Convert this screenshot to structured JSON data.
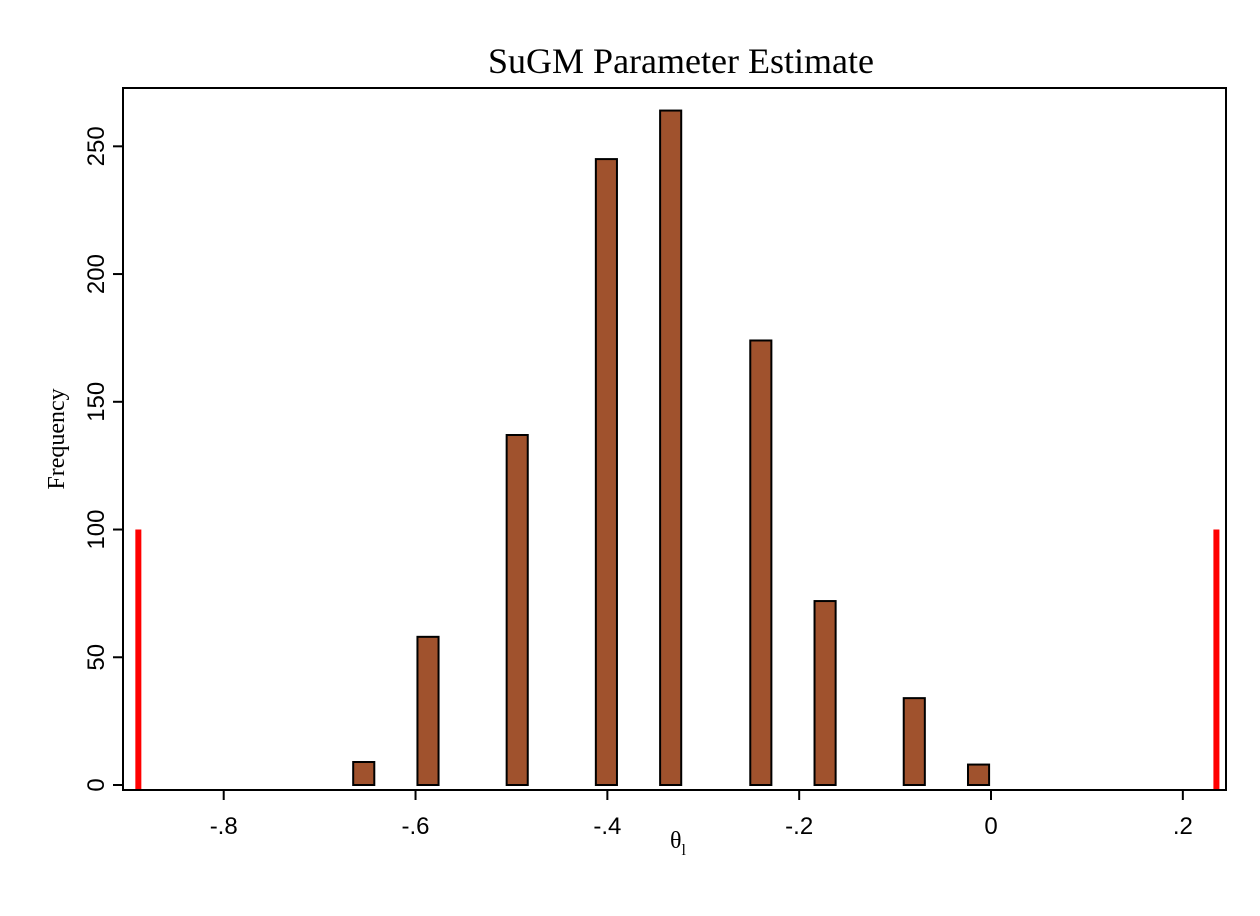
{
  "chart_data": {
    "type": "bar",
    "title": "SuGM Parameter Estimate",
    "xlabel": "θ",
    "xlabel_subscript": "l",
    "ylabel": "Frequency",
    "xlim": [
      -0.905,
      0.245
    ],
    "ylim": [
      0,
      265
    ],
    "x_ticks": [
      {
        "value": -0.8,
        "label": "-.8"
      },
      {
        "value": -0.6,
        "label": "-.6"
      },
      {
        "value": -0.4,
        "label": "-.4"
      },
      {
        "value": -0.2,
        "label": "-.2"
      },
      {
        "value": 0,
        "label": "0"
      },
      {
        "value": 0.2,
        "label": ".2"
      }
    ],
    "y_ticks": [
      {
        "value": 0,
        "label": "0"
      },
      {
        "value": 50,
        "label": "50"
      },
      {
        "value": 100,
        "label": "100"
      },
      {
        "value": 150,
        "label": "150"
      },
      {
        "value": 200,
        "label": "200"
      },
      {
        "value": 250,
        "label": "250"
      }
    ],
    "bar_width": 0.022,
    "bars": [
      {
        "x": -0.654,
        "value": 9
      },
      {
        "x": -0.587,
        "value": 58
      },
      {
        "x": -0.494,
        "value": 137
      },
      {
        "x": -0.401,
        "value": 245
      },
      {
        "x": -0.334,
        "value": 264
      },
      {
        "x": -0.24,
        "value": 174
      },
      {
        "x": -0.173,
        "value": 72
      },
      {
        "x": -0.08,
        "value": 34
      },
      {
        "x": -0.013,
        "value": 8
      }
    ],
    "reference_lines": [
      {
        "x": -0.889,
        "value": 100,
        "color": "#ff0000"
      },
      {
        "x": 0.235,
        "value": 100,
        "color": "#ff0000"
      }
    ],
    "bar_fill": "#a0522d",
    "bar_stroke": "#000000",
    "grid": false,
    "legend": "none"
  }
}
